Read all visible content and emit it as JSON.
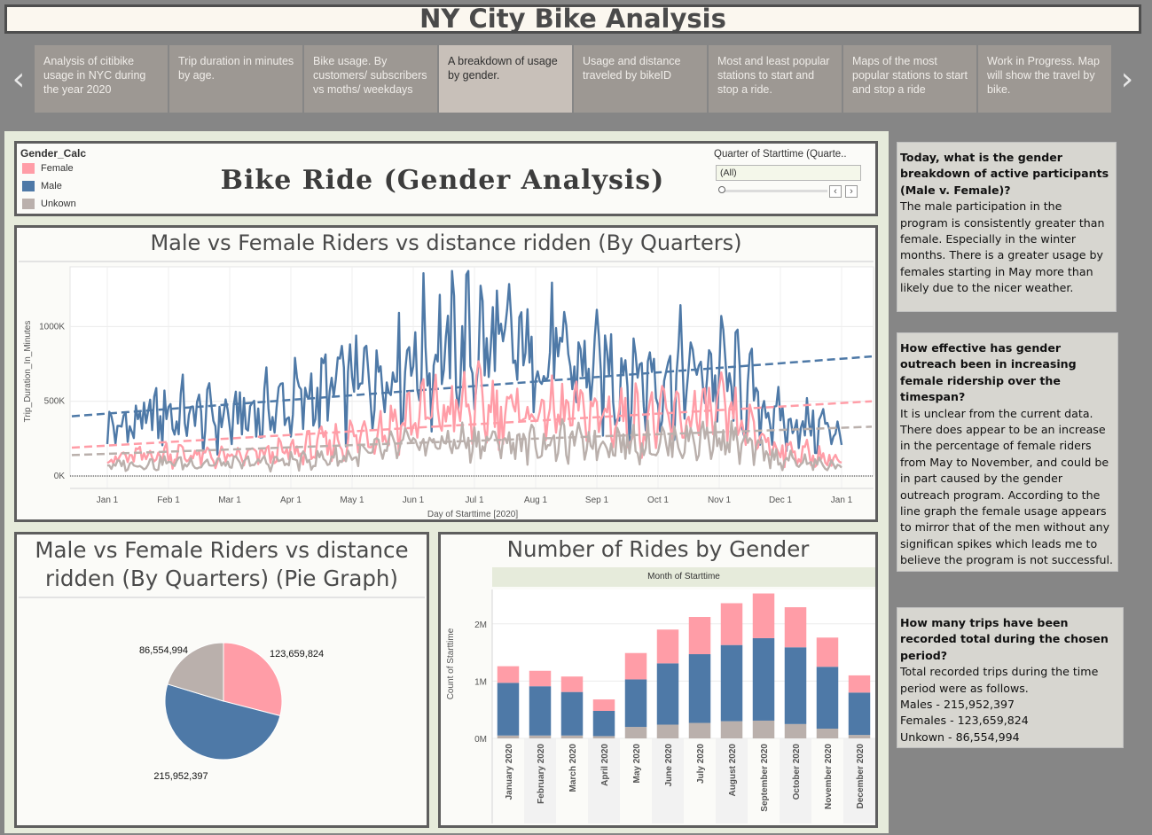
{
  "title": "NY City Bike Analysis",
  "nav": {
    "prev_icon": "‹",
    "next_icon": "›"
  },
  "tabs": [
    "Analysis of citibike usage in NYC during the year 2020",
    "Trip duration in minutes by age.",
    "Bike usage. By customers/ subscribers vs moths/ weekdays",
    "A breakdown of usage by gender.",
    "Usage and distance traveled by bikeID",
    "Most and least popular stations to start and stop a ride.",
    "Maps of the most popular stations to start and stop a ride",
    "Work in Progress. Map will show the travel by bike."
  ],
  "active_tab": 3,
  "legend": {
    "title": "Gender_Calc",
    "items": [
      {
        "label": "Female",
        "color": "#ff9da7"
      },
      {
        "label": "Male",
        "color": "#4e79a7"
      },
      {
        "label": "Unkown",
        "color": "#bab0ac"
      }
    ]
  },
  "dashboard_title": "Bike Ride (Gender Analysis)",
  "filter": {
    "label": "Quarter of Starttime (Quarte..",
    "value": "(All)"
  },
  "line_panel": {
    "title": "Male vs Female Riders vs distance ridden (By Quarters)"
  },
  "pie_panel": {
    "title_line1": "Male vs Female Riders vs distance",
    "title_line2": "ridden (By Quarters) (Pie Graph)"
  },
  "bar_panel": {
    "title": "Number of Rides by Gender",
    "header": "Month of Starttime"
  },
  "textboxes": [
    {
      "question": "Today, what is the gender breakdown of active participants (Male v. Female)?",
      "answer": "The male participation in the program is consistently greater than female. Especially in the winter months. There is a greater usage by females starting in May more than likely due to the nicer weather."
    },
    {
      "question": "How effective has gender outreach been in increasing female ridership over the timespan?",
      "answer": "It is unclear from the current data. There does appear to be an increase in the percentage of female riders from May to November, and could be in part caused by the gender outreach program. According to the line graph the female usage appears to mirror that of the men without any significan spikes which leads me to believe the program is not successful."
    },
    {
      "question": "How many trips have been recorded total during the chosen period?",
      "answer": "Total recorded trips during the time period were as follows.",
      "lines": [
        "Males - 215,952,397",
        "Females - 123,659,824",
        "Unkown - 86,554,994"
      ]
    }
  ],
  "chart_data": [
    {
      "type": "line",
      "xlabel": "Day of Starttime [2020]",
      "ylabel": "Trip_Duration_In_Minutes",
      "x_ticks": [
        "Jan 1",
        "Feb 1",
        "Mar 1",
        "Apr 1",
        "May 1",
        "Jun 1",
        "Jul 1",
        "Aug 1",
        "Sep 1",
        "Oct 1",
        "Nov 1",
        "Dec 1",
        "Jan 1"
      ],
      "y_ticks": [
        "0K",
        "500K",
        "1000K"
      ],
      "ylim": [
        0,
        1400000
      ],
      "x_months": [
        0,
        1,
        2,
        3,
        4,
        5,
        6,
        7,
        8,
        9,
        10,
        11,
        12
      ],
      "grid": true,
      "series": [
        {
          "name": "Male",
          "color": "#4e79a7",
          "values": [
            300000,
            420000,
            380000,
            480000,
            620000,
            800000,
            880000,
            820000,
            700000,
            660000,
            700000,
            360000,
            300000
          ],
          "trend": [
            400000,
            800000
          ]
        },
        {
          "name": "Female",
          "color": "#ff9da7",
          "values": [
            110000,
            150000,
            120000,
            160000,
            250000,
            400000,
            460000,
            420000,
            410000,
            370000,
            420000,
            180000,
            100000
          ],
          "trend": [
            190000,
            500000
          ]
        },
        {
          "name": "Unkown",
          "color": "#bab0ac",
          "values": [
            70000,
            90000,
            80000,
            100000,
            130000,
            210000,
            230000,
            220000,
            230000,
            220000,
            260000,
            110000,
            60000
          ],
          "trend": [
            140000,
            330000
          ]
        }
      ]
    },
    {
      "type": "pie",
      "slices": [
        {
          "name": "Female",
          "value": 123659824,
          "label": "123,659,824",
          "color": "#ff9da7"
        },
        {
          "name": "Male",
          "value": 215952397,
          "label": "215,952,397",
          "color": "#4e79a7"
        },
        {
          "name": "Unkown",
          "value": 86554994,
          "label": "86,554,994",
          "color": "#bab0ac"
        }
      ]
    },
    {
      "type": "bar",
      "stacked": true,
      "xlabel": "Month of Starttime",
      "ylabel": "Count of Starttime",
      "y_ticks": [
        "0M",
        "1M",
        "2M"
      ],
      "ylim": [
        0,
        2600000
      ],
      "categories": [
        "January 2020",
        "February 2020",
        "March 2020",
        "April 2020",
        "May 2020",
        "June 2020",
        "July 2020",
        "August 2020",
        "September 2020",
        "October 2020",
        "November 2020",
        "December 2020"
      ],
      "series": [
        {
          "name": "Unkown",
          "color": "#bab0ac",
          "values": [
            50000,
            50000,
            50000,
            40000,
            200000,
            240000,
            270000,
            300000,
            310000,
            250000,
            170000,
            60000
          ]
        },
        {
          "name": "Male",
          "color": "#4e79a7",
          "values": [
            920000,
            860000,
            760000,
            440000,
            830000,
            1070000,
            1200000,
            1330000,
            1440000,
            1340000,
            1080000,
            740000
          ]
        },
        {
          "name": "Female",
          "color": "#ff9da7",
          "values": [
            290000,
            270000,
            270000,
            200000,
            460000,
            590000,
            650000,
            730000,
            780000,
            700000,
            510000,
            300000
          ]
        }
      ]
    }
  ]
}
